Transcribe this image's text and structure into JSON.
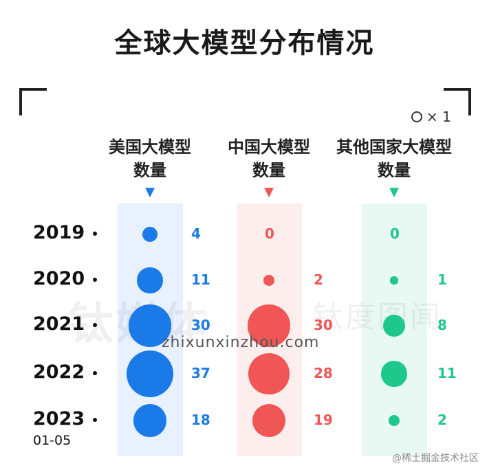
{
  "title": "全球大模型分布情况",
  "legend": {
    "symbol_label": "× 1"
  },
  "watermark": "zhixunxinzhou.com",
  "bg_logo": "钛媒体",
  "bg_logo2": "钛度图闻",
  "credit": "@稀土掘金技术社区",
  "colors": {
    "usa": "#1a7ae8",
    "china": "#f05656",
    "other": "#1ec88c"
  },
  "chart_data": {
    "type": "bubble",
    "title": "全球大模型分布情况",
    "categories": [
      "2019",
      "2020",
      "2021",
      "2022",
      "2023"
    ],
    "category_sublabels": [
      "",
      "",
      "",
      "",
      "01-05"
    ],
    "series": [
      {
        "name": "美国大模型\n数量",
        "header_lines": [
          "美国大模型",
          "数量"
        ],
        "values": [
          4,
          11,
          30,
          37,
          18
        ]
      },
      {
        "name": "中国大模型\n数量",
        "header_lines": [
          "中国大模型",
          "数量"
        ],
        "values": [
          0,
          2,
          30,
          28,
          19
        ]
      },
      {
        "name": "其他国家大模型\n数量",
        "header_lines": [
          "其他国家大模型",
          "数量"
        ],
        "values": [
          0,
          1,
          8,
          11,
          2
        ]
      }
    ]
  }
}
